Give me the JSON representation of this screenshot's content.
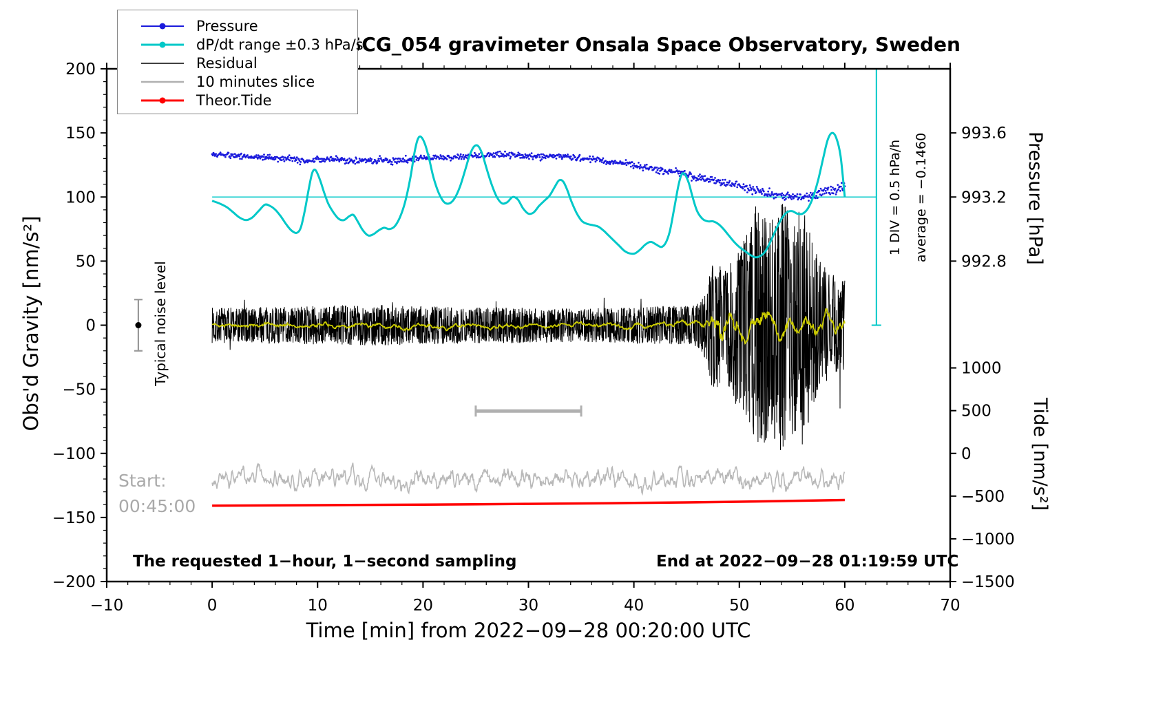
{
  "chart_data": {
    "type": "line",
    "title": "SCG_054 gravimeter Onsala Space Observatory, Sweden",
    "axes": {
      "x_label": "Time [min] from 2022−09−28 00:20:00 UTC",
      "y_left_label": "Obs'd Gravity [nm/s²]",
      "y_right_top_label": "Pressure [hPa]",
      "y_right_bottom_label": "Tide [nm/s²]",
      "xlim": [
        -10,
        70
      ],
      "ylim": [
        -200,
        200
      ],
      "x_ticks": [
        -10,
        0,
        10,
        20,
        30,
        40,
        50,
        60,
        70
      ],
      "x_minor_step": 2,
      "y_ticks": [
        200,
        150,
        100,
        50,
        0,
        -50,
        -100,
        -150,
        -200
      ],
      "y_minor_step": 10,
      "pressure_ticks": [
        {
          "label": "993.6",
          "g": 150
        },
        {
          "label": "993.2",
          "g": 100
        },
        {
          "label": "992.8",
          "g": 50
        }
      ],
      "tide_ticks": [
        {
          "label": "1000",
          "g": -33.33
        },
        {
          "label": "500",
          "g": -66.67
        },
        {
          "label": "0",
          "g": -100
        },
        {
          "label": "−500",
          "g": -133.33
        },
        {
          "label": "−1000",
          "g": -166.67
        },
        {
          "label": "−1500",
          "g": -200
        }
      ]
    },
    "legend": {
      "items": [
        {
          "label": "Pressure",
          "color": "#1a1adc",
          "style": "line-dot",
          "lw": 2
        },
        {
          "label": "dP/dt range ±0.3 hPa/s",
          "color": "#00c8c8",
          "style": "line-dot",
          "lw": 3
        },
        {
          "label": "Residual",
          "color": "#000000",
          "style": "line",
          "lw": 1.5
        },
        {
          "label": "10 minutes slice",
          "color": "#b0b0b0",
          "style": "line",
          "lw": 2.5
        },
        {
          "label": "Theor.Tide",
          "color": "#ff0000",
          "style": "line-dot",
          "lw": 3
        }
      ]
    },
    "annotations": {
      "noise_label": "Typical noise level",
      "div_label": "1 DIV = 0.5 hPa/h",
      "avg_label": "average = −0.1460",
      "start_label": "Start:",
      "start_time": "00:45:00",
      "bottom_left": "The requested 1−hour, 1−second sampling",
      "bottom_right": "End at 2022−09−28 01:19:59 UTC"
    },
    "geometry": {
      "noise_marker": {
        "x": -7,
        "g": 0,
        "error": 20
      },
      "slice_bar": {
        "x1": 25,
        "x2": 35,
        "g": -67
      },
      "pressure_centerline": {
        "g": 100,
        "x1": 0,
        "x2": 63
      },
      "pressure_scale_bar": {
        "x": 63,
        "g1": 0,
        "g2": 200
      },
      "pressure_axis_mapping": {
        "p_ref": 993.2,
        "g_ref": 100,
        "hpa_per_g_unit": 0.008
      },
      "tide_axis_mapping": {
        "tide_ref": 0,
        "g_ref": -100,
        "tide_per_g_unit": 15
      }
    },
    "series": [
      {
        "name": "10 minutes slice",
        "color": "#b8b8b8",
        "style": "smooth-noise",
        "width": 1.6,
        "mean": -120,
        "step": 0.05,
        "seed": 3,
        "halfwin": 2,
        "clip": 1.4,
        "envelope": [
          [
            0,
            9
          ],
          [
            60,
            9
          ]
        ]
      },
      {
        "name": "Theor.Tide",
        "color": "#ff0000",
        "style": "smooth",
        "width": 3.5,
        "points": [
          [
            0,
            -140.8
          ],
          [
            10,
            -140.4
          ],
          [
            20,
            -140.0
          ],
          [
            30,
            -139.4
          ],
          [
            40,
            -138.7
          ],
          [
            50,
            -137.7
          ],
          [
            60,
            -136.4
          ]
        ]
      },
      {
        "name": "Residual",
        "color": "#000000",
        "style": "noise",
        "width": 1,
        "mean": 0,
        "step": 0.025,
        "seed": 7,
        "sharpen": 0.65,
        "outlier_prob": 0.004,
        "outlier_gain": 1.8,
        "envelope": [
          [
            0,
            14
          ],
          [
            5,
            14
          ],
          [
            10,
            15
          ],
          [
            15,
            16
          ],
          [
            20,
            15
          ],
          [
            25,
            14
          ],
          [
            30,
            14
          ],
          [
            35,
            13
          ],
          [
            40,
            14
          ],
          [
            43,
            15
          ],
          [
            45,
            15
          ],
          [
            46,
            17
          ],
          [
            46.6,
            22
          ],
          [
            47,
            35
          ],
          [
            47.4,
            48
          ],
          [
            47.8,
            52
          ],
          [
            48.2,
            46
          ],
          [
            48.6,
            42
          ],
          [
            49,
            50
          ],
          [
            49.5,
            62
          ],
          [
            50,
            72
          ],
          [
            50.5,
            68
          ],
          [
            51,
            80
          ],
          [
            51.5,
            92
          ],
          [
            52,
            100
          ],
          [
            52.5,
            92
          ],
          [
            53,
            86
          ],
          [
            53.5,
            94
          ],
          [
            54,
            100
          ],
          [
            54.5,
            92
          ],
          [
            55,
            86
          ],
          [
            55.5,
            90
          ],
          [
            56,
            95
          ],
          [
            56.5,
            78
          ],
          [
            57,
            62
          ],
          [
            57.5,
            52
          ],
          [
            58,
            46
          ],
          [
            58.5,
            42
          ],
          [
            59,
            39
          ],
          [
            59.5,
            37
          ],
          [
            60,
            36
          ]
        ]
      },
      {
        "name": "Residual smoothed",
        "color": "#cccc00",
        "style": "smooth-noise",
        "width": 1.8,
        "mean": 0,
        "step": 0.05,
        "seed": 11,
        "halfwin": 8,
        "clip": 1.4,
        "envelope": [
          [
            0,
            3
          ],
          [
            44,
            3
          ],
          [
            46,
            4
          ],
          [
            46.6,
            7
          ],
          [
            47,
            14
          ],
          [
            47.4,
            22
          ],
          [
            47.8,
            26
          ],
          [
            48.2,
            24
          ],
          [
            48.6,
            21
          ],
          [
            49,
            17
          ],
          [
            49.5,
            15
          ],
          [
            50,
            13
          ],
          [
            51,
            12
          ],
          [
            52,
            13
          ],
          [
            53,
            11
          ],
          [
            54,
            12
          ],
          [
            55,
            10
          ],
          [
            56,
            11
          ],
          [
            57,
            10
          ],
          [
            58,
            9
          ],
          [
            59,
            9
          ],
          [
            60,
            9
          ]
        ]
      },
      {
        "name": "Pressure",
        "color": "#1a1adc",
        "style": "dots",
        "dot_r": 1.4,
        "step": 0.06,
        "seed": 5,
        "noise_base": 1.2,
        "noise_ramp_from": 40,
        "noise_ramp": 0.045,
        "points": [
          [
            0,
            133
          ],
          [
            1,
            133
          ],
          [
            2,
            132.5
          ],
          [
            3,
            132
          ],
          [
            4,
            131.5
          ],
          [
            5,
            131
          ],
          [
            6,
            130.5
          ],
          [
            7,
            130
          ],
          [
            8,
            129.5
          ],
          [
            9,
            127.5
          ],
          [
            10,
            129
          ],
          [
            11,
            130
          ],
          [
            12,
            129.5
          ],
          [
            13,
            128.5
          ],
          [
            14,
            128
          ],
          [
            15,
            128.5
          ],
          [
            16,
            129
          ],
          [
            17,
            128.5
          ],
          [
            18,
            129
          ],
          [
            19,
            130
          ],
          [
            20,
            130.5
          ],
          [
            21,
            130.5
          ],
          [
            22,
            130.5
          ],
          [
            23,
            131
          ],
          [
            24,
            131.5
          ],
          [
            25,
            132
          ],
          [
            26,
            132.5
          ],
          [
            27,
            133
          ],
          [
            28,
            133
          ],
          [
            29,
            132.5
          ],
          [
            30,
            132
          ],
          [
            31,
            131.5
          ],
          [
            32,
            132
          ],
          [
            33,
            132
          ],
          [
            34,
            131.5
          ],
          [
            35,
            130.5
          ],
          [
            36,
            129.5
          ],
          [
            37,
            128.5
          ],
          [
            38,
            127.5
          ],
          [
            39,
            126
          ],
          [
            40,
            124.5
          ],
          [
            41,
            123
          ],
          [
            42,
            121.5
          ],
          [
            43,
            120
          ],
          [
            44,
            120.5
          ],
          [
            45,
            118
          ],
          [
            46,
            115
          ],
          [
            47,
            113.5
          ],
          [
            48,
            112
          ],
          [
            49,
            110.5
          ],
          [
            50,
            108.5
          ],
          [
            51,
            106.5
          ],
          [
            52,
            104.5
          ],
          [
            53,
            102.5
          ],
          [
            54,
            101
          ],
          [
            55,
            100
          ],
          [
            56,
            100
          ],
          [
            57,
            101.5
          ],
          [
            58,
            103.5
          ],
          [
            59,
            106
          ],
          [
            60,
            109
          ]
        ]
      },
      {
        "name": "dP/dt range ±0.3 hPa/s",
        "color": "#00c8c8",
        "style": "smooth",
        "width": 3,
        "points": [
          [
            0,
            97
          ],
          [
            0.7,
            95
          ],
          [
            1.4,
            92
          ],
          [
            2,
            88
          ],
          [
            2.6,
            84
          ],
          [
            3.2,
            82
          ],
          [
            3.8,
            84
          ],
          [
            4.4,
            89
          ],
          [
            5,
            94
          ],
          [
            5.5,
            93
          ],
          [
            6,
            90
          ],
          [
            6.5,
            85
          ],
          [
            7,
            79
          ],
          [
            7.5,
            74
          ],
          [
            8,
            72
          ],
          [
            8.4,
            76
          ],
          [
            8.8,
            90
          ],
          [
            9.2,
            108
          ],
          [
            9.5,
            119
          ],
          [
            9.8,
            121
          ],
          [
            10.2,
            114
          ],
          [
            10.6,
            104
          ],
          [
            11,
            95
          ],
          [
            11.5,
            88
          ],
          [
            12,
            83
          ],
          [
            12.5,
            82
          ],
          [
            13,
            85
          ],
          [
            13.4,
            86
          ],
          [
            13.8,
            81
          ],
          [
            14.3,
            74
          ],
          [
            14.8,
            70
          ],
          [
            15.3,
            71
          ],
          [
            15.8,
            74
          ],
          [
            16.3,
            76
          ],
          [
            16.8,
            75
          ],
          [
            17.3,
            77
          ],
          [
            17.8,
            84
          ],
          [
            18.3,
            96
          ],
          [
            18.8,
            115
          ],
          [
            19.2,
            135
          ],
          [
            19.5,
            145
          ],
          [
            19.8,
            147
          ],
          [
            20.2,
            141
          ],
          [
            20.6,
            129
          ],
          [
            21,
            115
          ],
          [
            21.5,
            103
          ],
          [
            22,
            96
          ],
          [
            22.5,
            95
          ],
          [
            23,
            99
          ],
          [
            23.5,
            108
          ],
          [
            24,
            121
          ],
          [
            24.4,
            132
          ],
          [
            24.8,
            139
          ],
          [
            25.2,
            140
          ],
          [
            25.6,
            134
          ],
          [
            26,
            123
          ],
          [
            26.5,
            110
          ],
          [
            27,
            100
          ],
          [
            27.5,
            95
          ],
          [
            28,
            96
          ],
          [
            28.5,
            100
          ],
          [
            29,
            98
          ],
          [
            29.5,
            91
          ],
          [
            30,
            87
          ],
          [
            30.5,
            88
          ],
          [
            31,
            93
          ],
          [
            31.5,
            97
          ],
          [
            32,
            101
          ],
          [
            32.5,
            108
          ],
          [
            32.9,
            113
          ],
          [
            33.3,
            112
          ],
          [
            33.7,
            105
          ],
          [
            34.1,
            96
          ],
          [
            34.6,
            87
          ],
          [
            35.1,
            81
          ],
          [
            35.6,
            79
          ],
          [
            36.1,
            78
          ],
          [
            36.6,
            77
          ],
          [
            37.1,
            74
          ],
          [
            37.6,
            70
          ],
          [
            38.1,
            66
          ],
          [
            38.6,
            62
          ],
          [
            39.1,
            58
          ],
          [
            39.6,
            56
          ],
          [
            40.1,
            56
          ],
          [
            40.6,
            59
          ],
          [
            41.1,
            63
          ],
          [
            41.6,
            65
          ],
          [
            42.1,
            63
          ],
          [
            42.6,
            61
          ],
          [
            43,
            64
          ],
          [
            43.4,
            73
          ],
          [
            43.8,
            90
          ],
          [
            44.2,
            108
          ],
          [
            44.5,
            117
          ],
          [
            44.8,
            118
          ],
          [
            45.2,
            111
          ],
          [
            45.6,
            99
          ],
          [
            46,
            89
          ],
          [
            46.5,
            83
          ],
          [
            47,
            81
          ],
          [
            47.5,
            81
          ],
          [
            48,
            79
          ],
          [
            48.5,
            75
          ],
          [
            49,
            70
          ],
          [
            49.5,
            65
          ],
          [
            50,
            61
          ],
          [
            50.5,
            58
          ],
          [
            51,
            55
          ],
          [
            51.5,
            53
          ],
          [
            52,
            54
          ],
          [
            52.5,
            58
          ],
          [
            53,
            66
          ],
          [
            53.5,
            75
          ],
          [
            54,
            83
          ],
          [
            54.5,
            88
          ],
          [
            55,
            89
          ],
          [
            55.5,
            87
          ],
          [
            56,
            87
          ],
          [
            56.5,
            91
          ],
          [
            57,
            100
          ],
          [
            57.5,
            114
          ],
          [
            58,
            132
          ],
          [
            58.4,
            145
          ],
          [
            58.8,
            150
          ],
          [
            59.2,
            146
          ],
          [
            59.6,
            132
          ],
          [
            60,
            100
          ]
        ]
      }
    ]
  }
}
